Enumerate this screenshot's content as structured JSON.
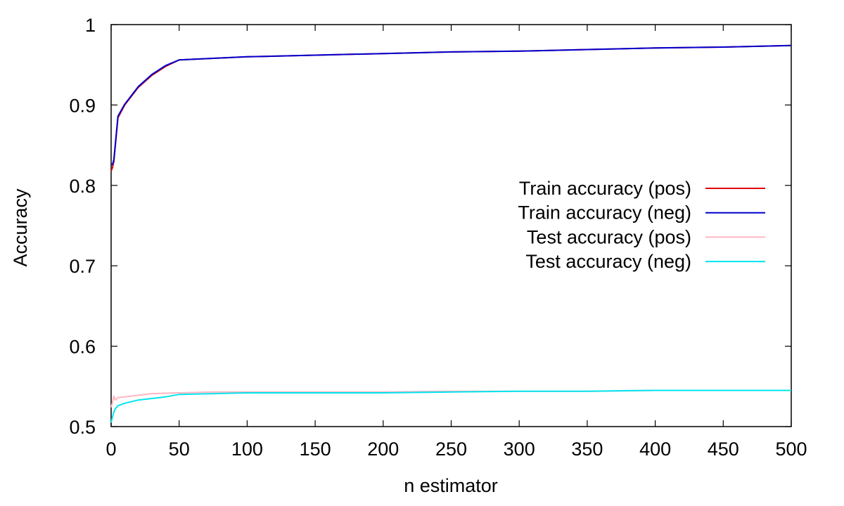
{
  "chart_data": {
    "type": "line",
    "title": "",
    "xlabel": "n estimator",
    "ylabel": "Accuracy",
    "xlim": [
      0,
      500
    ],
    "ylim": [
      0.5,
      1
    ],
    "xticks": [
      0,
      50,
      100,
      150,
      200,
      250,
      300,
      350,
      400,
      450,
      500
    ],
    "yticks": [
      0.5,
      0.6,
      0.7,
      0.8,
      0.9,
      1
    ],
    "ytick_labels": [
      "0.5",
      "0.6",
      "0.7",
      "0.8",
      "0.9",
      "1"
    ],
    "grid": false,
    "legend_position": "right",
    "series": [
      {
        "name": "Train accuracy (pos)",
        "color": "#e00000",
        "x": [
          0,
          1,
          2,
          5,
          10,
          20,
          30,
          40,
          50,
          75,
          100,
          150,
          200,
          250,
          300,
          350,
          400,
          450,
          500
        ],
        "y": [
          0.818,
          0.822,
          0.83,
          0.884,
          0.9,
          0.922,
          0.937,
          0.948,
          0.956,
          0.958,
          0.96,
          0.962,
          0.964,
          0.966,
          0.967,
          0.969,
          0.971,
          0.972,
          0.974
        ]
      },
      {
        "name": "Train accuracy (neg)",
        "color": "#0000d0",
        "x": [
          0,
          1,
          2,
          5,
          10,
          20,
          30,
          40,
          50,
          75,
          100,
          150,
          200,
          250,
          300,
          350,
          400,
          450,
          500
        ],
        "y": [
          0.826,
          0.826,
          0.832,
          0.886,
          0.901,
          0.923,
          0.938,
          0.949,
          0.956,
          0.958,
          0.96,
          0.962,
          0.964,
          0.966,
          0.967,
          0.969,
          0.971,
          0.972,
          0.974
        ]
      },
      {
        "name": "Test accuracy (pos)",
        "color": "#ffb6c1",
        "x": [
          0,
          1,
          2,
          3,
          5,
          10,
          20,
          30,
          50,
          75,
          100,
          150,
          200,
          250,
          300,
          350,
          400,
          450,
          500
        ],
        "y": [
          0.524,
          0.53,
          0.538,
          0.533,
          0.536,
          0.537,
          0.539,
          0.541,
          0.542,
          0.543,
          0.543,
          0.543,
          0.543,
          0.544,
          0.544,
          0.544,
          0.545,
          0.545,
          0.545
        ]
      },
      {
        "name": "Test accuracy (neg)",
        "color": "#00e5ee",
        "x": [
          0,
          1,
          2,
          3,
          5,
          10,
          20,
          30,
          40,
          50,
          75,
          100,
          150,
          200,
          250,
          300,
          350,
          400,
          450,
          500
        ],
        "y": [
          0.505,
          0.512,
          0.518,
          0.522,
          0.526,
          0.529,
          0.533,
          0.535,
          0.537,
          0.54,
          0.541,
          0.542,
          0.542,
          0.542,
          0.543,
          0.544,
          0.544,
          0.545,
          0.545,
          0.545
        ]
      }
    ]
  }
}
